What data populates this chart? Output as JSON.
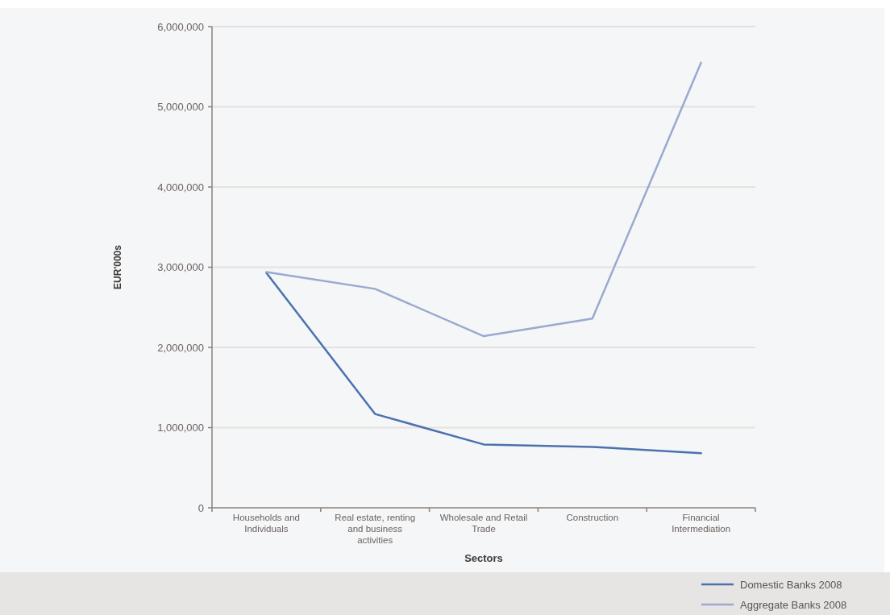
{
  "chart_data": {
    "type": "line",
    "xlabel": "Sectors",
    "ylabel": "EUR'000s",
    "categories": [
      "Households and Individuals",
      "Real estate, renting and business activities",
      "Wholesale and Retail Trade",
      "Construction",
      "Financial Intermediation"
    ],
    "series": [
      {
        "name": "Domestic Banks 2008",
        "color": "#4b72ae",
        "values": [
          2930000,
          1170000,
          790000,
          760000,
          680000
        ]
      },
      {
        "name": "Aggregate Banks 2008",
        "color": "#9aa9cf",
        "values": [
          2940000,
          2730000,
          2140000,
          2360000,
          5550000
        ]
      }
    ],
    "ylim": [
      0,
      6000000
    ],
    "yticks": [
      {
        "value": 0,
        "label": "0"
      },
      {
        "value": 1000000,
        "label": "1,000,000"
      },
      {
        "value": 2000000,
        "label": "2,000,000"
      },
      {
        "value": 3000000,
        "label": "3,000,000"
      },
      {
        "value": 4000000,
        "label": "4,000,000"
      },
      {
        "value": 5000000,
        "label": "5,000,000"
      },
      {
        "value": 6000000,
        "label": "6,000,000"
      }
    ],
    "grid": "y",
    "legend": "bottom right",
    "marker": "none",
    "line_style": "solid"
  }
}
